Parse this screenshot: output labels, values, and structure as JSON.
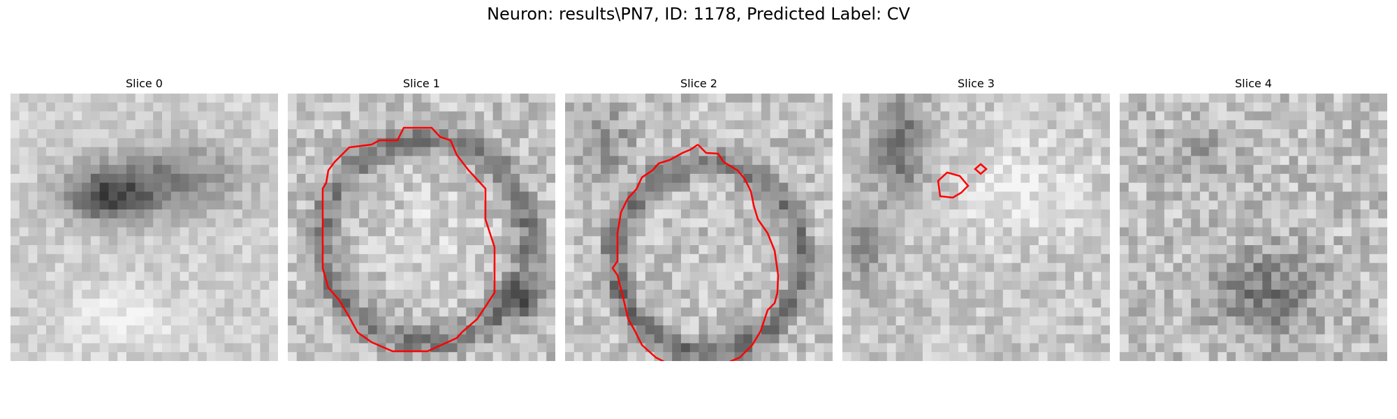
{
  "figure": {
    "title": "Neuron: results\\PN7, ID: 1178, Predicted Label: CV"
  },
  "panels": [
    {
      "title": "Slice 0",
      "has_contour": false
    },
    {
      "title": "Slice 1",
      "has_contour": true
    },
    {
      "title": "Slice 2",
      "has_contour": true
    },
    {
      "title": "Slice 3",
      "has_contour": true
    },
    {
      "title": "Slice 4",
      "has_contour": false
    }
  ],
  "colors": {
    "contour": "#ff0000",
    "background": "#ffffff"
  },
  "image_style": {
    "colormap": "gray",
    "grid": "30x30 pixels",
    "axes": "off"
  }
}
